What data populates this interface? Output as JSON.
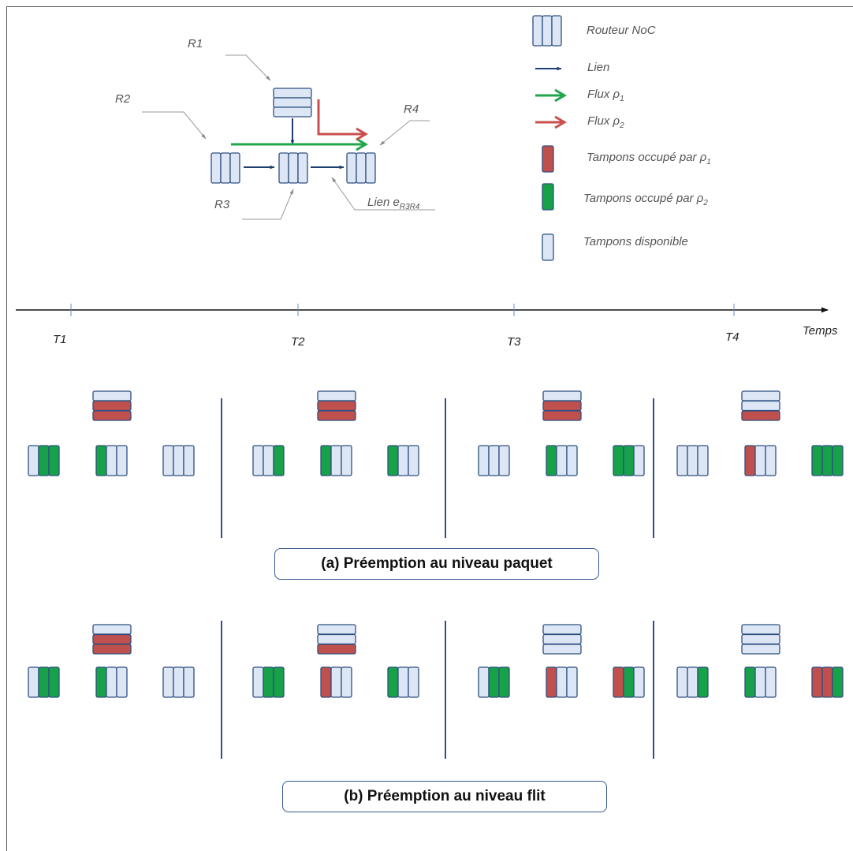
{
  "colors": {
    "buffer_free": "#dce6f4",
    "buffer_red": "#c0504d",
    "buffer_green": "#17a24a",
    "outline": "#2f4f7f",
    "flux_green": "#22a64a",
    "flux_red": "#c9504c",
    "lien": "#1f3f70"
  },
  "topology": {
    "r1": "R1",
    "r2": "R2",
    "r3": "R3",
    "r4": "R4",
    "link_label": "Lien e",
    "link_sub": "R3R4"
  },
  "legend": {
    "routeur": "Routeur NoC",
    "lien": "Lien",
    "flux1": "Flux ρ",
    "flux1_sub": "1",
    "flux2": "Flux ρ",
    "flux2_sub": "2",
    "tampon_rouge": "Tampons occupé par ρ",
    "tampon_rouge_sub": "1",
    "tampon_vert": "Tampons occupé par ρ",
    "tampon_vert_sub": "2",
    "tampon_libre": "Tampons disponible"
  },
  "timeline": {
    "t1": "T1",
    "t2": "T2",
    "t3": "T3",
    "t4": "T4",
    "axis": "Temps"
  },
  "panels": {
    "a": {
      "caption": "(a)  Préemption au niveau paquet",
      "states": [
        {
          "r1": [
            "F",
            "R",
            "R"
          ],
          "r2": [
            "F",
            "G",
            "G"
          ],
          "r3": [
            "G",
            "F",
            "F"
          ],
          "r4": [
            "F",
            "F",
            "F"
          ]
        },
        {
          "r1": [
            "F",
            "R",
            "R"
          ],
          "r2": [
            "F",
            "F",
            "G"
          ],
          "r3": [
            "G",
            "F",
            "F"
          ],
          "r4": [
            "G",
            "F",
            "F"
          ]
        },
        {
          "r1": [
            "F",
            "R",
            "R"
          ],
          "r2": [
            "F",
            "F",
            "F"
          ],
          "r3": [
            "G",
            "F",
            "F"
          ],
          "r4": [
            "G",
            "G",
            "F"
          ]
        },
        {
          "r1": [
            "F",
            "F",
            "R"
          ],
          "r2": [
            "F",
            "F",
            "F"
          ],
          "r3": [
            "R",
            "F",
            "F"
          ],
          "r4": [
            "G",
            "G",
            "G"
          ]
        }
      ]
    },
    "b": {
      "caption": "(b) Préemption au niveau flit",
      "states": [
        {
          "r1": [
            "F",
            "R",
            "R"
          ],
          "r2": [
            "F",
            "G",
            "G"
          ],
          "r3": [
            "G",
            "F",
            "F"
          ],
          "r4": [
            "F",
            "F",
            "F"
          ]
        },
        {
          "r1": [
            "F",
            "F",
            "R"
          ],
          "r2": [
            "F",
            "G",
            "G"
          ],
          "r3": [
            "R",
            "F",
            "F"
          ],
          "r4": [
            "G",
            "F",
            "F"
          ]
        },
        {
          "r1": [
            "F",
            "F",
            "F"
          ],
          "r2": [
            "F",
            "G",
            "G"
          ],
          "r3": [
            "R",
            "F",
            "F"
          ],
          "r4": [
            "R",
            "G",
            "F"
          ]
        },
        {
          "r1": [
            "F",
            "F",
            "F"
          ],
          "r2": [
            "F",
            "F",
            "G"
          ],
          "r3": [
            "G",
            "F",
            "F"
          ],
          "r4": [
            "R",
            "R",
            "G"
          ]
        }
      ]
    }
  }
}
